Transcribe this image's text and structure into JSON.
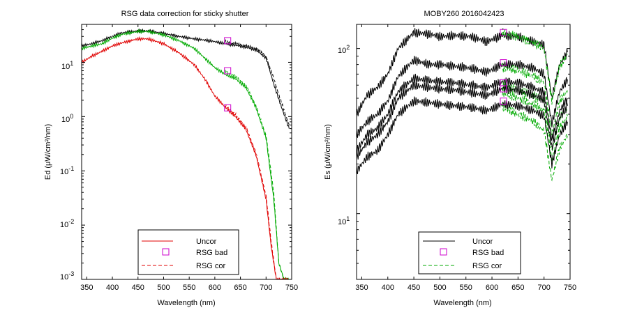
{
  "chart_data": [
    {
      "type": "line",
      "title": "RSG data correction for sticky shutter",
      "xlabel": "Wavelength (nm)",
      "ylabel": "Ed (μW/cm²/nm)",
      "yscale": "log",
      "xlim": [
        340,
        750
      ],
      "ylim": [
        0.001,
        50
      ],
      "x_ticks": [
        350,
        400,
        450,
        500,
        550,
        600,
        650,
        700,
        750
      ],
      "y_tick_labels": [
        {
          "base": "10",
          "exp": "1"
        },
        {
          "base": "10",
          "exp": "0"
        },
        {
          "base": "10",
          "exp": "-1"
        },
        {
          "base": "10",
          "exp": "-2"
        },
        {
          "base": "10",
          "exp": "-3"
        }
      ],
      "legend": {
        "position": "bottom-center",
        "entries": [
          {
            "label": "Uncor",
            "style": "solid",
            "color": "#e00000"
          },
          {
            "label": "RSG bad",
            "style": "square-marker",
            "color": "#cc00cc"
          },
          {
            "label": "RSG cor",
            "style": "dashed",
            "color": "#e00000"
          }
        ]
      },
      "series": [
        {
          "name": "Uncor (upper)",
          "color": "#000000",
          "x": [
            340,
            360,
            380,
            400,
            420,
            450,
            470,
            500,
            530,
            560,
            590,
            620,
            650,
            680,
            700,
            715,
            730,
            745
          ],
          "values": [
            20,
            22,
            25,
            30,
            35,
            38,
            38,
            34,
            30,
            27,
            25,
            22,
            20,
            17,
            12,
            4,
            1.5,
            0.6
          ]
        },
        {
          "name": "RSG cor (upper)",
          "color": "#000000",
          "dashed": true,
          "x": [
            620,
            650,
            680,
            700,
            715,
            730,
            745
          ],
          "values": [
            24,
            21,
            18,
            13,
            5,
            1.8,
            0.7
          ]
        },
        {
          "name": "Uncor (middle)",
          "color": "#00aa00",
          "x": [
            340,
            360,
            380,
            400,
            420,
            450,
            470,
            500,
            530,
            560,
            580,
            600,
            620,
            640,
            660,
            680,
            700,
            715,
            725,
            735,
            745
          ],
          "values": [
            18,
            20,
            22,
            28,
            33,
            37,
            37,
            32,
            25,
            18,
            12,
            8,
            6,
            5,
            3.5,
            1.5,
            0.4,
            0.03,
            0.002,
            0.001,
            0.001
          ]
        },
        {
          "name": "RSG cor (middle)",
          "color": "#00aa00",
          "dashed": true,
          "x": [
            620,
            640,
            660,
            680,
            700,
            715,
            725,
            735,
            745
          ],
          "values": [
            6.8,
            5.5,
            3.8,
            1.6,
            0.45,
            0.04,
            0.002,
            0.001,
            0.001
          ]
        },
        {
          "name": "Uncor (lower)",
          "color": "#e00000",
          "x": [
            340,
            360,
            380,
            400,
            420,
            450,
            470,
            500,
            530,
            560,
            580,
            600,
            620,
            640,
            660,
            680,
            700,
            710,
            720,
            730,
            745
          ],
          "values": [
            10,
            13,
            16,
            20,
            23,
            27,
            27,
            22,
            15,
            9,
            5,
            2.4,
            1.5,
            1.0,
            0.6,
            0.2,
            0.03,
            0.004,
            0.001,
            0.001,
            0.001
          ]
        },
        {
          "name": "RSG cor (lower)",
          "color": "#e00000",
          "dashed": true,
          "x": [
            620,
            640,
            660,
            680,
            700,
            710,
            720,
            730,
            745
          ],
          "values": [
            1.6,
            1.1,
            0.65,
            0.22,
            0.035,
            0.005,
            0.001,
            0.001,
            0.001
          ]
        }
      ],
      "rsg_bad_points": {
        "x": [
          625,
          625,
          625
        ],
        "values": [
          25,
          7.0,
          1.45
        ]
      }
    },
    {
      "type": "line",
      "title": "MOBY260  2016042423",
      "xlabel": "Wavelength (nm)",
      "ylabel": "Es (μW/cm²/nm)",
      "yscale": "log",
      "xlim": [
        340,
        750
      ],
      "ylim": [
        4,
        140
      ],
      "x_ticks": [
        350,
        400,
        450,
        500,
        550,
        600,
        650,
        700,
        750
      ],
      "y_tick_labels": [
        {
          "base": "10",
          "exp": "2"
        },
        {
          "base": "10",
          "exp": "1"
        }
      ],
      "legend": {
        "position": "bottom-center",
        "entries": [
          {
            "label": "Uncor",
            "style": "solid",
            "color": "#000000"
          },
          {
            "label": "RSG bad",
            "style": "square-marker",
            "color": "#cc00cc"
          },
          {
            "label": "RSG cor",
            "style": "dashed",
            "color": "#00aa00"
          }
        ]
      },
      "series": [
        {
          "name": "Uncor 1",
          "color": "#000000",
          "x": [
            340,
            360,
            380,
            400,
            420,
            450,
            480,
            500,
            530,
            560,
            590,
            620,
            650,
            680,
            700,
            715,
            730,
            745
          ],
          "values": [
            40,
            52,
            58,
            70,
            100,
            125,
            122,
            118,
            120,
            118,
            110,
            120,
            118,
            110,
            105,
            50,
            80,
            95
          ]
        },
        {
          "name": "RSG cor 1",
          "color": "#00aa00",
          "dashed": true,
          "x": [
            620,
            650,
            680,
            700,
            715,
            730,
            745
          ],
          "values": [
            125,
            118,
            108,
            100,
            48,
            78,
            92
          ]
        },
        {
          "name": "Uncor 2",
          "color": "#000000",
          "x": [
            340,
            360,
            380,
            400,
            420,
            450,
            480,
            500,
            530,
            560,
            590,
            620,
            650,
            680,
            700,
            715,
            730,
            745
          ],
          "values": [
            30,
            36,
            40,
            48,
            68,
            85,
            80,
            80,
            78,
            76,
            72,
            80,
            80,
            76,
            70,
            35,
            55,
            65
          ]
        },
        {
          "name": "RSG cor 2",
          "color": "#00aa00",
          "dashed": true,
          "x": [
            620,
            650,
            680,
            700,
            715,
            730,
            745
          ],
          "values": [
            76,
            74,
            68,
            62,
            30,
            48,
            56
          ]
        },
        {
          "name": "Uncor 3",
          "color": "#000000",
          "x": [
            340,
            360,
            380,
            400,
            420,
            450,
            480,
            500,
            530,
            560,
            590,
            620,
            650,
            680,
            700,
            715,
            730,
            745
          ],
          "values": [
            24,
            30,
            33,
            40,
            55,
            66,
            64,
            63,
            62,
            60,
            58,
            63,
            62,
            58,
            54,
            28,
            42,
            50
          ]
        },
        {
          "name": "RSG cor 3",
          "color": "#00aa00",
          "dashed": true,
          "x": [
            620,
            650,
            680,
            700,
            715,
            730,
            745
          ],
          "values": [
            60,
            56,
            52,
            48,
            24,
            38,
            44
          ]
        },
        {
          "name": "Uncor 4",
          "color": "#000000",
          "x": [
            340,
            360,
            380,
            400,
            420,
            450,
            480,
            500,
            530,
            560,
            590,
            620,
            650,
            680,
            700,
            715,
            730,
            745
          ],
          "values": [
            22,
            27,
            30,
            36,
            50,
            60,
            58,
            57,
            56,
            54,
            52,
            57,
            56,
            52,
            49,
            25,
            38,
            45
          ]
        },
        {
          "name": "RSG cor 4",
          "color": "#00aa00",
          "dashed": true,
          "x": [
            620,
            650,
            680,
            700,
            715,
            730,
            745
          ],
          "values": [
            54,
            50,
            46,
            42,
            21,
            33,
            39
          ]
        },
        {
          "name": "Uncor 5",
          "color": "#000000",
          "x": [
            340,
            360,
            380,
            400,
            420,
            450,
            480,
            500,
            530,
            560,
            590,
            620,
            650,
            680,
            700,
            715,
            730,
            745
          ],
          "values": [
            18,
            22,
            24,
            30,
            40,
            48,
            47,
            46,
            45,
            44,
            42,
            46,
            45,
            42,
            39,
            20,
            30,
            36
          ]
        },
        {
          "name": "RSG cor 5",
          "color": "#00aa00",
          "dashed": true,
          "x": [
            620,
            650,
            680,
            700,
            715,
            730,
            745
          ],
          "values": [
            44,
            40,
            36,
            32,
            16,
            25,
            30
          ]
        }
      ],
      "rsg_bad_points": {
        "x": [
          622,
          622,
          622,
          622,
          622
        ],
        "values": [
          125,
          82,
          62,
          57,
          48
        ]
      }
    }
  ]
}
